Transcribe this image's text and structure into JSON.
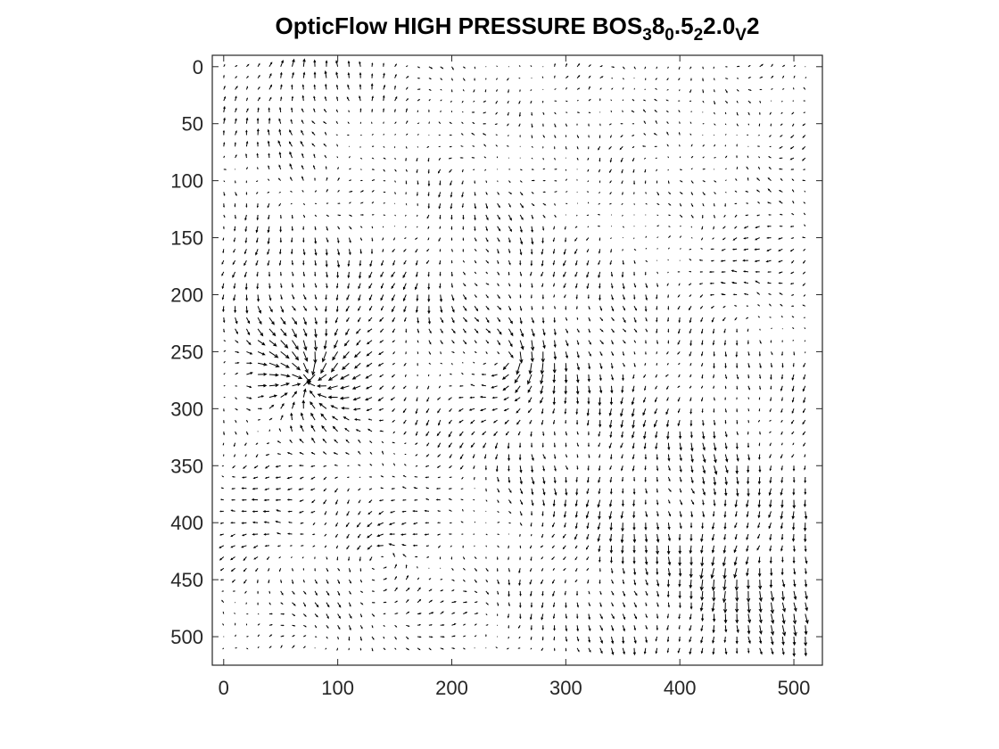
{
  "chart_data": {
    "type": "quiver",
    "title": {
      "parts": [
        {
          "text": "OpticFlow HIGH PRESSURE BOS",
          "sub": false
        },
        {
          "text": "3",
          "sub": true
        },
        {
          "text": "8",
          "sub": false
        },
        {
          "text": "0",
          "sub": true
        },
        {
          "text": ".5",
          "sub": false
        },
        {
          "text": "2",
          "sub": true
        },
        {
          "text": "2.0",
          "sub": false
        },
        {
          "text": "V",
          "sub": true
        },
        {
          "text": "2",
          "sub": false
        }
      ]
    },
    "xlabel": "",
    "ylabel": "",
    "xlim": [
      -10,
      525
    ],
    "ylim": [
      -10,
      525
    ],
    "y_reversed": true,
    "x_ticks": [
      0,
      100,
      200,
      300,
      400,
      500
    ],
    "y_ticks": [
      0,
      50,
      100,
      150,
      200,
      250,
      300,
      350,
      400,
      450,
      500
    ],
    "grid": false,
    "arrow_color": "#000000",
    "axis_color": "#262626",
    "grid_spacing": 10,
    "grid_range": [
      0,
      510
    ],
    "flow_features": [
      {
        "kind": "sink",
        "x": 75,
        "y": 275,
        "strength": 3.2,
        "radius": 55
      },
      {
        "kind": "source",
        "x": 20,
        "y": 275,
        "strength": 0.8,
        "radius": 60
      },
      {
        "kind": "vortex",
        "x": 250,
        "y": 255,
        "strength": 1.6,
        "radius": 45
      },
      {
        "kind": "vortex",
        "x": 140,
        "y": 430,
        "strength": -1.5,
        "radius": 60
      },
      {
        "kind": "uniform",
        "x": 390,
        "y": 390,
        "dx": 0.0,
        "dy": 2.1,
        "radius": 130
      },
      {
        "kind": "uniform",
        "x": 60,
        "y": 20,
        "dx": 0.0,
        "dy": -2.2,
        "radius": 60
      },
      {
        "kind": "uniform",
        "x": 500,
        "y": 180,
        "dx": -1.2,
        "dy": -0.5,
        "radius": 55
      },
      {
        "kind": "uniform",
        "x": 20,
        "y": 170,
        "dx": 0.0,
        "dy": 2.0,
        "radius": 40
      },
      {
        "kind": "uniform",
        "x": 30,
        "y": 360,
        "dx": -1.6,
        "dy": 0.3,
        "radius": 50
      },
      {
        "kind": "uniform",
        "x": 200,
        "y": 200,
        "dx": 0.0,
        "dy": 1.4,
        "radius": 90
      },
      {
        "kind": "uniform",
        "x": 480,
        "y": 480,
        "dx": 0.0,
        "dy": 1.8,
        "radius": 60
      }
    ]
  }
}
